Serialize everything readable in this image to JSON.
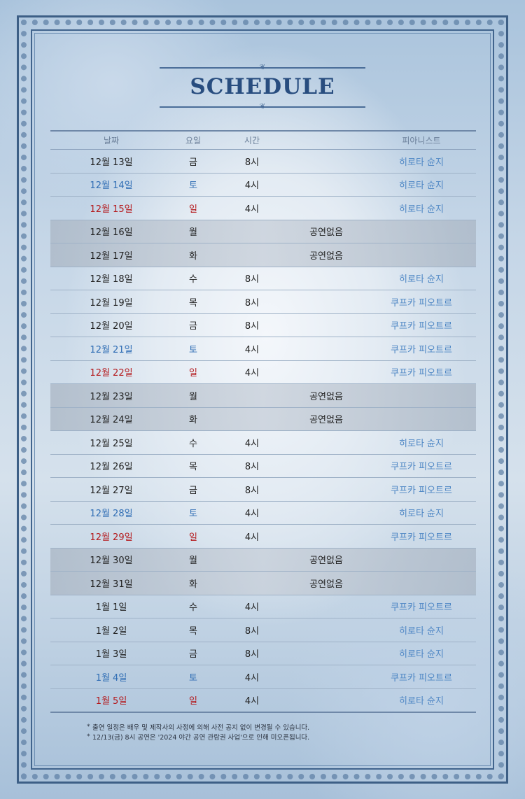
{
  "title": "SCHEDULE",
  "headers": {
    "date": "날짜",
    "dow": "요일",
    "time": "시간",
    "pianist": "피아니스트"
  },
  "rows": [
    {
      "date": "12월 13일",
      "dow": "금",
      "time": "8시",
      "pianist": "히로타 슌지",
      "type": "weekday"
    },
    {
      "date": "12월 14일",
      "dow": "토",
      "time": "4시",
      "pianist": "히로타 슌지",
      "type": "sat"
    },
    {
      "date": "12월 15일",
      "dow": "일",
      "time": "4시",
      "pianist": "히로타 슌지",
      "type": "sun"
    },
    {
      "date": "12월 16일",
      "dow": "월",
      "note": "공연없음",
      "type": "off"
    },
    {
      "date": "12월 17일",
      "dow": "화",
      "note": "공연없음",
      "type": "off"
    },
    {
      "date": "12월 18일",
      "dow": "수",
      "time": "8시",
      "pianist": "히로타 슌지",
      "type": "weekday"
    },
    {
      "date": "12월 19일",
      "dow": "목",
      "time": "8시",
      "pianist": "쿠프카 피오트르",
      "type": "weekday"
    },
    {
      "date": "12월 20일",
      "dow": "금",
      "time": "8시",
      "pianist": "쿠프카 피오트르",
      "type": "weekday"
    },
    {
      "date": "12월 21일",
      "dow": "토",
      "time": "4시",
      "pianist": "쿠프카 피오트르",
      "type": "sat"
    },
    {
      "date": "12월 22일",
      "dow": "일",
      "time": "4시",
      "pianist": "쿠프카 피오트르",
      "type": "sun"
    },
    {
      "date": "12월 23일",
      "dow": "월",
      "note": "공연없음",
      "type": "off"
    },
    {
      "date": "12월 24일",
      "dow": "화",
      "note": "공연없음",
      "type": "off"
    },
    {
      "date": "12월 25일",
      "dow": "수",
      "time": "4시",
      "pianist": "히로타 슌지",
      "type": "weekday"
    },
    {
      "date": "12월 26일",
      "dow": "목",
      "time": "8시",
      "pianist": "쿠프카 피오트르",
      "type": "weekday"
    },
    {
      "date": "12월 27일",
      "dow": "금",
      "time": "8시",
      "pianist": "쿠프카 피오트르",
      "type": "weekday"
    },
    {
      "date": "12월 28일",
      "dow": "토",
      "time": "4시",
      "pianist": "히로타 슌지",
      "type": "sat"
    },
    {
      "date": "12월 29일",
      "dow": "일",
      "time": "4시",
      "pianist": "쿠프카 피오트르",
      "type": "sun"
    },
    {
      "date": "12월 30일",
      "dow": "월",
      "note": "공연없음",
      "type": "off"
    },
    {
      "date": "12월 31일",
      "dow": "화",
      "note": "공연없음",
      "type": "off"
    },
    {
      "date": "1월 1일",
      "dow": "수",
      "time": "4시",
      "pianist": "쿠프카 피오트르",
      "type": "weekday"
    },
    {
      "date": "1월 2일",
      "dow": "목",
      "time": "8시",
      "pianist": "히로타 슌지",
      "type": "weekday"
    },
    {
      "date": "1월 3일",
      "dow": "금",
      "time": "8시",
      "pianist": "히로타 슌지",
      "type": "weekday"
    },
    {
      "date": "1월 4일",
      "dow": "토",
      "time": "4시",
      "pianist": "쿠프카 피오트르",
      "type": "sat"
    },
    {
      "date": "1월 5일",
      "dow": "일",
      "time": "4시",
      "pianist": "히로타 슌지",
      "type": "sun"
    }
  ],
  "notes": [
    "출연 일정은 배우 및 제작사의 사정에 의해 사전 공지 없이 변경될 수 있습니다.",
    "12/13(금) 8시 공연은 '2024 야간 공연 관람권 사업'으로 인해 미오픈됩니다."
  ],
  "colors": {
    "title": "#284d7f",
    "saturday": "#2f6db4",
    "sunday": "#b4191c",
    "pianist": "#4d86c4",
    "frame": "#3d5f86"
  }
}
